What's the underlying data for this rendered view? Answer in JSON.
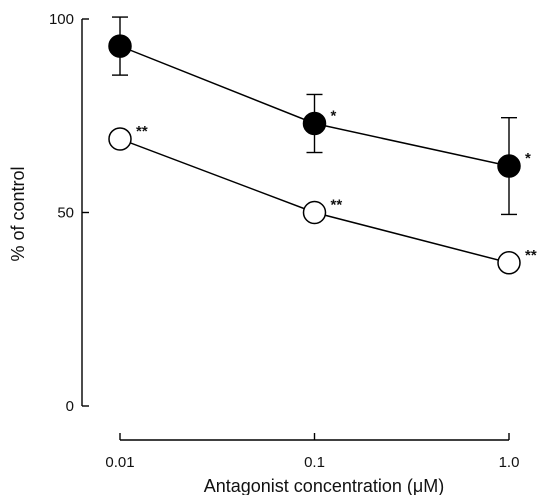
{
  "chart_data": {
    "type": "line",
    "title": "",
    "xlabel": "Antagonist concentration (μM)",
    "ylabel": "% of control",
    "x_scale": "log",
    "categories": [
      "0.01",
      "0.1",
      "1.0"
    ],
    "x": [
      0.01,
      0.1,
      1.0
    ],
    "xlim": [
      0.01,
      1.0
    ],
    "ylim": [
      0,
      100
    ],
    "y_ticks": [
      0,
      50,
      100
    ],
    "y_tick_labels": [
      "0",
      "50",
      "100"
    ],
    "grid": false,
    "legend": "none",
    "series": [
      {
        "marker": "filled-circle",
        "values": [
          93,
          73,
          62
        ],
        "error": [
          7.5,
          7.5,
          12.5
        ],
        "significance": [
          "",
          "*",
          "*"
        ],
        "color": "#000000"
      },
      {
        "marker": "open-circle",
        "values": [
          69,
          50,
          37
        ],
        "significance": [
          "**",
          "**",
          "**"
        ],
        "color": "#000000"
      }
    ]
  }
}
